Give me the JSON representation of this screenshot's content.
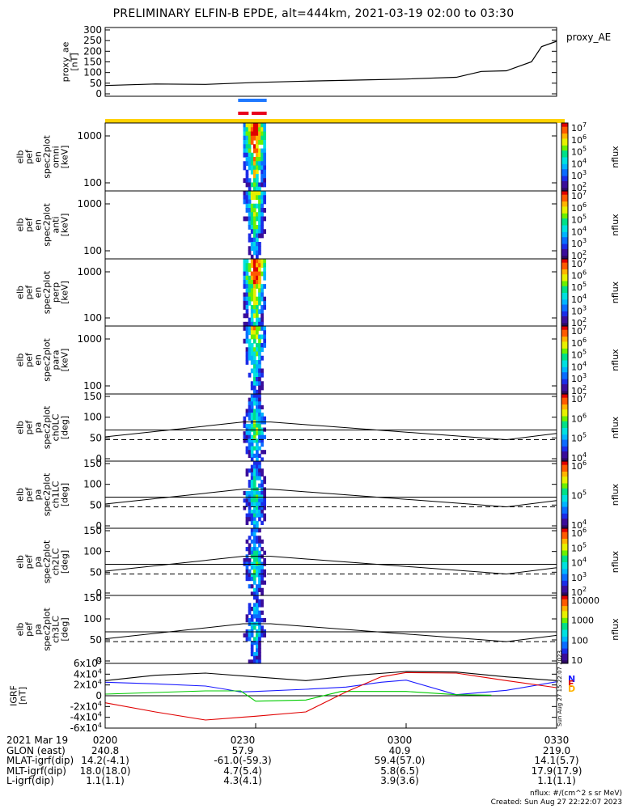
{
  "title": "PRELIMINARY ELFIN-B EPDE, alt=444km, 2021-03-19 02:00 to 03:30",
  "colors": {
    "bar_blue": "#1e78ff",
    "bar_red": "#e8001c",
    "bar_yellow": "#ffd200"
  },
  "panels": [
    {
      "id": "proxy_ae",
      "ylabel": [
        "proxy_ae",
        "[nT]"
      ],
      "ticks": [
        "0",
        "50",
        "100",
        "150",
        "200",
        "250",
        "300"
      ],
      "side_label": "proxy_AE"
    },
    {
      "id": "omni",
      "ylabel": [
        "elb",
        "pef",
        "en",
        "spec2plot",
        "omni",
        "[keV]"
      ],
      "ticks": [
        "100",
        "1000"
      ],
      "cb_ticks": [
        "10^2",
        "10^3",
        "10^4",
        "10^5",
        "10^6",
        "10^7"
      ],
      "cb_label": "nflux"
    },
    {
      "id": "anti",
      "ylabel": [
        "elb",
        "pef",
        "en",
        "spec2plot",
        "anti",
        "[keV]"
      ],
      "ticks": [
        "100",
        "1000"
      ],
      "cb_ticks": [
        "10^2",
        "10^3",
        "10^4",
        "10^5",
        "10^6",
        "10^7"
      ],
      "cb_label": "nflux"
    },
    {
      "id": "perp",
      "ylabel": [
        "elb",
        "pef",
        "en",
        "spec2plot",
        "perp",
        "[keV]"
      ],
      "ticks": [
        "100",
        "1000"
      ],
      "cb_ticks": [
        "10^2",
        "10^3",
        "10^4",
        "10^5",
        "10^6",
        "10^7"
      ],
      "cb_label": "nflux"
    },
    {
      "id": "para",
      "ylabel": [
        "elb",
        "pef",
        "en",
        "spec2plot",
        "para",
        "[keV]"
      ],
      "ticks": [
        "100",
        "1000"
      ],
      "cb_ticks": [
        "10^2",
        "10^3",
        "10^4",
        "10^5",
        "10^6",
        "10^7"
      ],
      "cb_label": "nflux"
    },
    {
      "id": "ch0LC",
      "ylabel": [
        "elb",
        "pef",
        "pa",
        "spec2plot",
        "ch0LC",
        "[deg]"
      ],
      "ticks": [
        "0",
        "50",
        "100",
        "150"
      ],
      "cb_ticks": [
        "10^4",
        "10^5",
        "10^6",
        "10^7"
      ],
      "cb_label": "nflux"
    },
    {
      "id": "ch1LC",
      "ylabel": [
        "elb",
        "pef",
        "pa",
        "spec2plot",
        "ch1LC",
        "[deg]"
      ],
      "ticks": [
        "0",
        "50",
        "100",
        "150"
      ],
      "cb_ticks": [
        "10^4",
        "10^5",
        "10^6"
      ],
      "cb_label": "nflux"
    },
    {
      "id": "ch2LC",
      "ylabel": [
        "elb",
        "pef",
        "pa",
        "spec2plot",
        "ch2LC",
        "[deg]"
      ],
      "ticks": [
        "0",
        "50",
        "100",
        "150"
      ],
      "cb_ticks": [
        "10^2",
        "10^3",
        "10^4",
        "10^5",
        "10^6"
      ],
      "cb_label": "nflux"
    },
    {
      "id": "ch3LC",
      "ylabel": [
        "elb",
        "pef",
        "pa",
        "spec2plot",
        "ch3LC",
        "[deg]"
      ],
      "ticks": [
        "0",
        "50",
        "100",
        "150"
      ],
      "cb_ticks": [
        "10",
        "100",
        "1000",
        "10000"
      ],
      "cb_label": "nflux"
    },
    {
      "id": "igrf",
      "ylabel": [
        "IGRF",
        "[nT]"
      ],
      "ticks": [
        "-6x10^4",
        "-4x10^4",
        "-2x10^4",
        "0",
        "2x10^4",
        "4x10^4",
        "6x10^4"
      ],
      "legend": [
        "N",
        "E",
        "D"
      ]
    }
  ],
  "chart_data": {
    "type": "line",
    "x_range": [
      "2021-03-19 02:00",
      "2021-03-19 03:30"
    ],
    "proxy_ae": {
      "ylim": [
        0,
        300
      ],
      "x": [
        0,
        10,
        20,
        30,
        40,
        50,
        60,
        70,
        75,
        80,
        85,
        87,
        90
      ],
      "y": [
        50,
        57,
        55,
        64,
        70,
        75,
        80,
        88,
        115,
        118,
        160,
        230,
        255
      ]
    },
    "spectrogram_time_window_min": [
      27.5,
      32.0
    ],
    "pa_lines": {
      "ylim": [
        0,
        180
      ],
      "solid_x": [
        0,
        27.5,
        33,
        80,
        90
      ],
      "solid_y": [
        70,
        113,
        113,
        62,
        80
      ],
      "dashed_x": [
        0,
        90
      ],
      "dashed_y": [
        62,
        62
      ]
    },
    "igrf": {
      "ylim": [
        -60000,
        60000
      ],
      "series": [
        {
          "name": "N",
          "color": "#1a1aff",
          "x": [
            0,
            10,
            20,
            24,
            27,
            30,
            40,
            48,
            55,
            60,
            70,
            80,
            90
          ],
          "y": [
            25000,
            22000,
            18000,
            12000,
            7000,
            8000,
            12000,
            16000,
            25000,
            29000,
            2000,
            10000,
            26000
          ]
        },
        {
          "name": "E",
          "color": "#00cc00",
          "x": [
            0,
            10,
            20,
            27,
            30,
            40,
            47,
            60,
            70,
            77
          ],
          "y": [
            3000,
            6000,
            9000,
            9000,
            -10000,
            -8000,
            8000,
            8000,
            2000,
            1000
          ]
        },
        {
          "name": "D",
          "color": "#e00000",
          "x": [
            0,
            10,
            20,
            27,
            30,
            40,
            48,
            55,
            60,
            70,
            75,
            80,
            90
          ],
          "y": [
            -13000,
            -30000,
            -45000,
            -40000,
            -38000,
            -30000,
            7000,
            35000,
            43000,
            42000,
            35000,
            28000,
            15000
          ]
        },
        {
          "name": "total",
          "color": "#000000",
          "x": [
            0,
            10,
            20,
            30,
            40,
            50,
            60,
            70,
            80,
            90
          ],
          "y": [
            28000,
            38000,
            42000,
            35000,
            28000,
            38000,
            45000,
            44000,
            35000,
            28000
          ]
        }
      ]
    }
  },
  "footer": {
    "rows": [
      {
        "label": "2021 Mar 19",
        "values": [
          "0200",
          "0230",
          "0300",
          "0330"
        ]
      },
      {
        "label": "GLON (east)",
        "values": [
          "240.8",
          "57.9",
          "40.9",
          "219.0"
        ]
      },
      {
        "label": "MLAT-igrf(dip)",
        "values": [
          "14.2(-4.1)",
          "-61.0(-59.3)",
          "59.4(57.0)",
          "14.1(5.7)"
        ]
      },
      {
        "label": "MLT-igrf(dip)",
        "values": [
          "18.0(18.0)",
          "4.7(5.4)",
          "5.8(6.5)",
          "17.9(17.9)"
        ]
      },
      {
        "label": "L-igrf(dip)",
        "values": [
          "1.1(1.1)",
          "4.3(4.1)",
          "3.9(3.6)",
          "1.1(1.1)"
        ]
      }
    ],
    "units_note": "nflux: #/(cm^2 s sr MeV)",
    "created_note": "Created: Sun Aug 27 22:22:07 2023",
    "side_stamp": "Sun Aug 27 15:22:07 2023"
  }
}
